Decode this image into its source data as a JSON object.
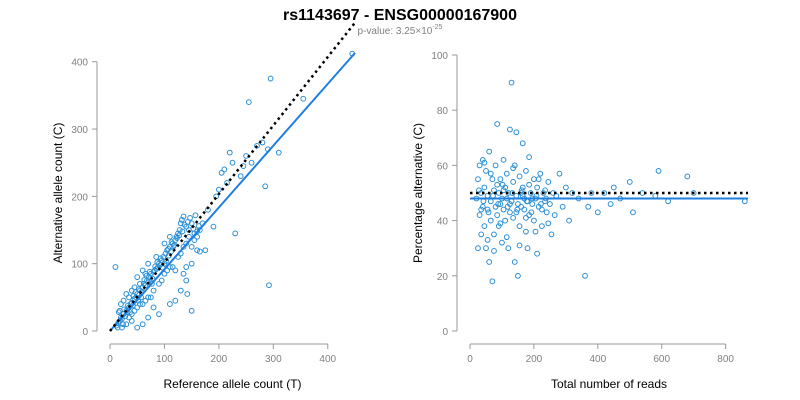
{
  "figure": {
    "title": "rs1143697 - ENSG00000167900",
    "subtitle_prefix": "p-value: 3.25",
    "subtitle_times": "×",
    "subtitle_base": "10",
    "subtitle_exponent": "-25"
  },
  "colors": {
    "points": "#2a8fd6",
    "fit_line": "#1f7fe0",
    "reference_line": "#000000",
    "axis": "#999999",
    "tick_label": "#808080"
  },
  "chart_data": [
    {
      "type": "scatter",
      "xlabel": "Reference allele count (T)",
      "ylabel": "Alternative allele count (C)",
      "xlim": [
        0,
        450
      ],
      "ylim": [
        0,
        410
      ],
      "xticks": [
        0,
        100,
        200,
        300,
        400
      ],
      "yticks": [
        0,
        100,
        200,
        300,
        400
      ],
      "grid": false,
      "points": [
        [
          12,
          8
        ],
        [
          15,
          12
        ],
        [
          10,
          95
        ],
        [
          18,
          15
        ],
        [
          20,
          20
        ],
        [
          22,
          18
        ],
        [
          25,
          25
        ],
        [
          28,
          22
        ],
        [
          14,
          5
        ],
        [
          16,
          28
        ],
        [
          24,
          10
        ],
        [
          30,
          30
        ],
        [
          32,
          28
        ],
        [
          35,
          35
        ],
        [
          38,
          40
        ],
        [
          40,
          42
        ],
        [
          42,
          38
        ],
        [
          45,
          48
        ],
        [
          48,
          50
        ],
        [
          50,
          55
        ],
        [
          52,
          45
        ],
        [
          55,
          60
        ],
        [
          58,
          58
        ],
        [
          60,
          65
        ],
        [
          62,
          70
        ],
        [
          65,
          68
        ],
        [
          68,
          75
        ],
        [
          70,
          72
        ],
        [
          72,
          80
        ],
        [
          75,
          85
        ],
        [
          78,
          78
        ],
        [
          80,
          88
        ],
        [
          82,
          90
        ],
        [
          85,
          92
        ],
        [
          88,
          95
        ],
        [
          90,
          100
        ],
        [
          92,
          98
        ],
        [
          95,
          105
        ],
        [
          98,
          110
        ],
        [
          100,
          100
        ],
        [
          102,
          115
        ],
        [
          105,
          120
        ],
        [
          108,
          112
        ],
        [
          110,
          125
        ],
        [
          112,
          118
        ],
        [
          115,
          130
        ],
        [
          118,
          128
        ],
        [
          120,
          135
        ],
        [
          122,
          140
        ],
        [
          125,
          145
        ],
        [
          128,
          150
        ],
        [
          130,
          160
        ],
        [
          132,
          165
        ],
        [
          135,
          170
        ],
        [
          140,
          155
        ],
        [
          145,
          150
        ],
        [
          150,
          160
        ],
        [
          155,
          145
        ],
        [
          160,
          148
        ],
        [
          30,
          55
        ],
        [
          35,
          20
        ],
        [
          40,
          60
        ],
        [
          45,
          30
        ],
        [
          50,
          80
        ],
        [
          55,
          40
        ],
        [
          60,
          90
        ],
        [
          65,
          45
        ],
        [
          70,
          100
        ],
        [
          75,
          50
        ],
        [
          80,
          60
        ],
        [
          85,
          110
        ],
        [
          90,
          70
        ],
        [
          95,
          75
        ],
        [
          100,
          85
        ],
        [
          105,
          90
        ],
        [
          110,
          95
        ],
        [
          20,
          40
        ],
        [
          25,
          45
        ],
        [
          30,
          10
        ],
        [
          35,
          50
        ],
        [
          40,
          25
        ],
        [
          45,
          65
        ],
        [
          50,
          35
        ],
        [
          55,
          70
        ],
        [
          60,
          40
        ],
        [
          65,
          85
        ],
        [
          70,
          50
        ],
        [
          120,
          90
        ],
        [
          125,
          110
        ],
        [
          130,
          115
        ],
        [
          135,
          125
        ],
        [
          140,
          130
        ],
        [
          145,
          140
        ],
        [
          150,
          125
        ],
        [
          100,
          130
        ],
        [
          110,
          140
        ],
        [
          115,
          95
        ],
        [
          170,
          160
        ],
        [
          175,
          120
        ],
        [
          180,
          180
        ],
        [
          190,
          155
        ],
        [
          195,
          200
        ],
        [
          200,
          210
        ],
        [
          205,
          235
        ],
        [
          210,
          240
        ],
        [
          215,
          220
        ],
        [
          220,
          265
        ],
        [
          225,
          250
        ],
        [
          230,
          145
        ],
        [
          240,
          230
        ],
        [
          245,
          245
        ],
        [
          250,
          260
        ],
        [
          255,
          340
        ],
        [
          260,
          250
        ],
        [
          270,
          275
        ],
        [
          280,
          280
        ],
        [
          285,
          215
        ],
        [
          290,
          270
        ],
        [
          292,
          68
        ],
        [
          295,
          375
        ],
        [
          310,
          265
        ],
        [
          355,
          345
        ],
        [
          445,
          412
        ],
        [
          140,
          75
        ],
        [
          150,
          100
        ],
        [
          160,
          120
        ],
        [
          165,
          118
        ],
        [
          150,
          30
        ],
        [
          142,
          55
        ],
        [
          120,
          45
        ],
        [
          110,
          40
        ],
        [
          90,
          25
        ],
        [
          80,
          35
        ],
        [
          60,
          10
        ],
        [
          50,
          5
        ],
        [
          40,
          15
        ],
        [
          70,
          20
        ],
        [
          130,
          60
        ],
        [
          135,
          85
        ],
        [
          140,
          95
        ],
        [
          155,
          135
        ],
        [
          160,
          140
        ],
        [
          165,
          150
        ],
        [
          18,
          30
        ],
        [
          22,
          5
        ],
        [
          26,
          32
        ],
        [
          33,
          38
        ],
        [
          37,
          28
        ],
        [
          43,
          52
        ],
        [
          47,
          58
        ],
        [
          53,
          62
        ],
        [
          57,
          50
        ],
        [
          63,
          76
        ],
        [
          67,
          82
        ],
        [
          73,
          88
        ],
        [
          77,
          70
        ],
        [
          83,
          96
        ],
        [
          87,
          102
        ],
        [
          93,
          108
        ],
        [
          97,
          94
        ],
        [
          103,
          104
        ],
        [
          107,
          122
        ],
        [
          113,
          132
        ],
        [
          117,
          126
        ],
        [
          123,
          138
        ],
        [
          127,
          142
        ],
        [
          133,
          148
        ],
        [
          137,
          158
        ],
        [
          143,
          162
        ],
        [
          147,
          168
        ],
        [
          153,
          152
        ],
        [
          157,
          172
        ],
        [
          163,
          156
        ]
      ],
      "reference_line": {
        "x": [
          0,
          450
        ],
        "y": [
          0,
          458
        ]
      },
      "fit_line": {
        "x": [
          0,
          450
        ],
        "y": [
          0,
          413
        ]
      }
    },
    {
      "type": "scatter",
      "xlabel": "Total number of reads",
      "ylabel": "Percentage alternative (C)",
      "xlim": [
        0,
        870
      ],
      "ylim": [
        0,
        100
      ],
      "xticks": [
        0,
        200,
        400,
        600,
        800
      ],
      "yticks": [
        0,
        20,
        40,
        60,
        80,
        100
      ],
      "grid": false,
      "points": [
        [
          20,
          48
        ],
        [
          25,
          55
        ],
        [
          30,
          60
        ],
        [
          30,
          42
        ],
        [
          35,
          35
        ],
        [
          35,
          50
        ],
        [
          40,
          62
        ],
        [
          40,
          45
        ],
        [
          45,
          38
        ],
        [
          45,
          52
        ],
        [
          50,
          30
        ],
        [
          50,
          58
        ],
        [
          55,
          44
        ],
        [
          55,
          49
        ],
        [
          60,
          25
        ],
        [
          60,
          65
        ],
        [
          65,
          40
        ],
        [
          65,
          47
        ],
        [
          70,
          18
        ],
        [
          70,
          55
        ],
        [
          75,
          35
        ],
        [
          75,
          51
        ],
        [
          80,
          45
        ],
        [
          80,
          60
        ],
        [
          85,
          75
        ],
        [
          85,
          42
        ],
        [
          90,
          50
        ],
        [
          90,
          38
        ],
        [
          95,
          55
        ],
        [
          95,
          46
        ],
        [
          100,
          32
        ],
        [
          100,
          48
        ],
        [
          105,
          62
        ],
        [
          105,
          44
        ],
        [
          110,
          52
        ],
        [
          110,
          40
        ],
        [
          115,
          57
        ],
        [
          115,
          48
        ],
        [
          120,
          30
        ],
        [
          120,
          50
        ],
        [
          125,
          73
        ],
        [
          125,
          43
        ],
        [
          130,
          90
        ],
        [
          130,
          47
        ],
        [
          135,
          54
        ],
        [
          135,
          41
        ],
        [
          140,
          60
        ],
        [
          140,
          25
        ],
        [
          145,
          72
        ],
        [
          145,
          49
        ],
        [
          150,
          46
        ],
        [
          150,
          20
        ],
        [
          155,
          56
        ],
        [
          155,
          38
        ],
        [
          160,
          50
        ],
        [
          160,
          45
        ],
        [
          165,
          68
        ],
        [
          165,
          52
        ],
        [
          170,
          44
        ],
        [
          170,
          48
        ],
        [
          175,
          58
        ],
        [
          175,
          36
        ],
        [
          180,
          47
        ],
        [
          180,
          30
        ],
        [
          185,
          53
        ],
        [
          185,
          42
        ],
        [
          190,
          50
        ],
        [
          195,
          46
        ],
        [
          200,
          55
        ],
        [
          200,
          40
        ],
        [
          205,
          48
        ],
        [
          210,
          28
        ],
        [
          210,
          52
        ],
        [
          215,
          45
        ],
        [
          220,
          57
        ],
        [
          225,
          38
        ],
        [
          230,
          50
        ],
        [
          235,
          47
        ],
        [
          240,
          43
        ],
        [
          245,
          54
        ],
        [
          250,
          46
        ],
        [
          255,
          35
        ],
        [
          260,
          50
        ],
        [
          265,
          42
        ],
        [
          270,
          49
        ],
        [
          280,
          57
        ],
        [
          290,
          45
        ],
        [
          300,
          52
        ],
        [
          310,
          40
        ],
        [
          320,
          50
        ],
        [
          340,
          48
        ],
        [
          360,
          20
        ],
        [
          370,
          45
        ],
        [
          380,
          50
        ],
        [
          400,
          43
        ],
        [
          420,
          50
        ],
        [
          440,
          46
        ],
        [
          450,
          52
        ],
        [
          470,
          48
        ],
        [
          500,
          54
        ],
        [
          510,
          43
        ],
        [
          540,
          50
        ],
        [
          580,
          49
        ],
        [
          590,
          58
        ],
        [
          620,
          47
        ],
        [
          680,
          56
        ],
        [
          700,
          50
        ],
        [
          860,
          47
        ],
        [
          25,
          30
        ],
        [
          35,
          44
        ],
        [
          45,
          61
        ],
        [
          55,
          33
        ],
        [
          65,
          57
        ],
        [
          75,
          29
        ],
        [
          85,
          53
        ],
        [
          95,
          39
        ],
        [
          105,
          51
        ],
        [
          115,
          34
        ],
        [
          125,
          46
        ],
        [
          135,
          59
        ],
        [
          145,
          43
        ],
        [
          155,
          31
        ],
        [
          165,
          49
        ],
        [
          175,
          41
        ],
        [
          185,
          63
        ],
        [
          195,
          48
        ],
        [
          205,
          36
        ],
        [
          215,
          55
        ],
        [
          225,
          44
        ],
        [
          235,
          51
        ],
        [
          245,
          39
        ],
        [
          28,
          51
        ],
        [
          42,
          47
        ],
        [
          58,
          43
        ],
        [
          72,
          49
        ],
        [
          88,
          46
        ],
        [
          102,
          53
        ],
        [
          118,
          45
        ],
        [
          132,
          50
        ],
        [
          148,
          44
        ],
        [
          162,
          51
        ],
        [
          178,
          47
        ],
        [
          192,
          43
        ],
        [
          208,
          49
        ],
        [
          222,
          46
        ],
        [
          238,
          48
        ]
      ],
      "reference_line": {
        "x": [
          0,
          870
        ],
        "y": [
          50,
          50
        ]
      },
      "fit_line": {
        "x": [
          0,
          870
        ],
        "y": [
          48,
          48
        ]
      }
    }
  ]
}
